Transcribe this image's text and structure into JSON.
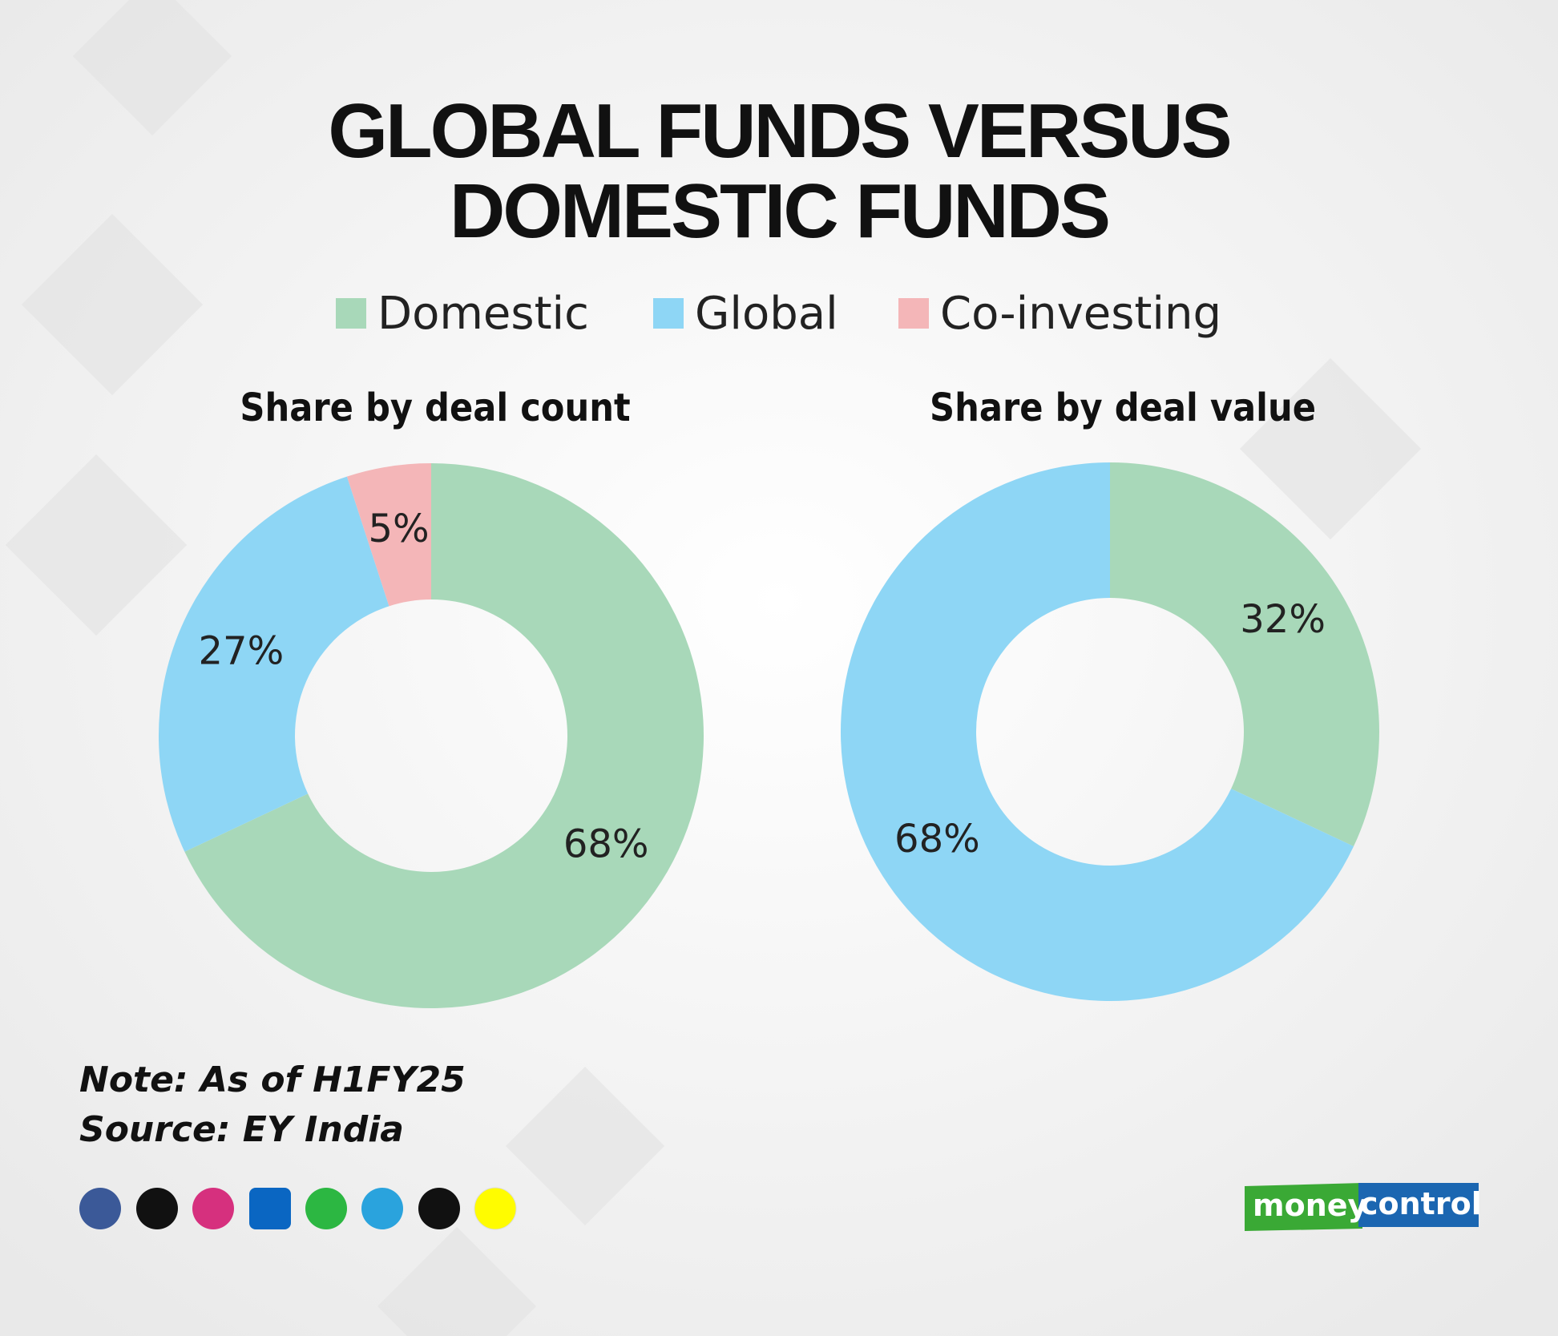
{
  "title": [
    "GLOBAL FUNDS VERSUS",
    "DOMESTIC FUNDS"
  ],
  "note": "Note: As of H1FY25",
  "source": "Source: EY India",
  "brand": [
    "money",
    "control"
  ],
  "chart_data": [
    {
      "type": "donut",
      "title": "Share by deal count",
      "categories": [
        "Domestic",
        "Global",
        "Co-investing"
      ],
      "values": [
        68,
        27,
        5
      ],
      "value_labels": [
        "68%",
        "27%",
        "5%"
      ],
      "colors": [
        "#a8d8b9",
        "#8ed6f5",
        "#f4b6b8"
      ],
      "legend": "top"
    },
    {
      "type": "donut",
      "title": "Share by deal value",
      "categories": [
        "Domestic",
        "Global"
      ],
      "values": [
        32,
        68
      ],
      "value_labels": [
        "32%",
        "68%"
      ],
      "colors": [
        "#a8d8b9",
        "#8ed6f5"
      ]
    }
  ]
}
